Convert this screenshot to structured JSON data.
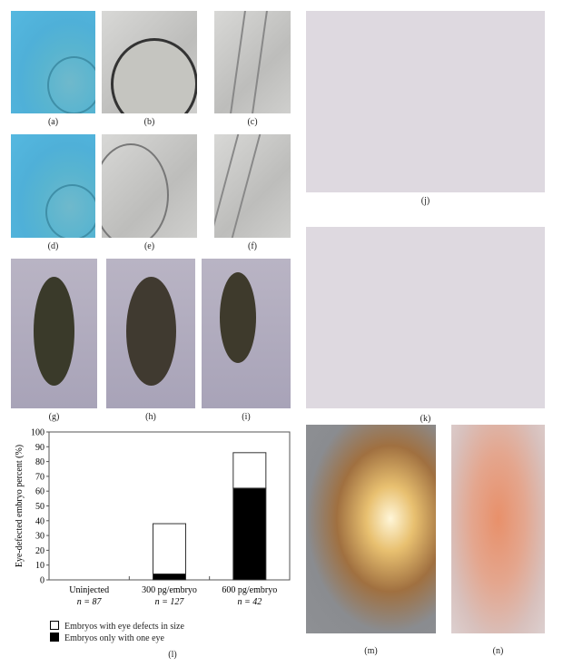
{
  "panels": [
    {
      "id": "a",
      "label": "(a)"
    },
    {
      "id": "b",
      "label": "(b)"
    },
    {
      "id": "c",
      "label": "(c)"
    },
    {
      "id": "d",
      "label": "(d)"
    },
    {
      "id": "e",
      "label": "(e)"
    },
    {
      "id": "f",
      "label": "(f)"
    },
    {
      "id": "g",
      "label": "(g)"
    },
    {
      "id": "h",
      "label": "(h)"
    },
    {
      "id": "i",
      "label": "(i)"
    },
    {
      "id": "j",
      "label": "(j)"
    },
    {
      "id": "k",
      "label": "(k)"
    },
    {
      "id": "m",
      "label": "(m)"
    },
    {
      "id": "n",
      "label": "(n)"
    }
  ],
  "chart_label": "(l)",
  "chart_data": {
    "type": "bar",
    "stacked": true,
    "ylabel": "Eye-defected embryo percent (%)",
    "ylim": [
      0,
      100
    ],
    "yticks": [
      0,
      10,
      20,
      30,
      40,
      50,
      60,
      70,
      80,
      90,
      100
    ],
    "categories": [
      "Uninjected",
      "300 pg/embryo",
      "600 pg/embryo"
    ],
    "category_n": [
      "n = 87",
      "n = 127",
      "n = 42"
    ],
    "series": [
      {
        "name": "Embryos only with one eye",
        "color": "#000000",
        "values": [
          0,
          4,
          62
        ]
      },
      {
        "name": "Embryos with eye defects in size",
        "color": "#ffffff",
        "values": [
          0,
          34,
          24
        ]
      }
    ],
    "grid": false,
    "legend_position": "bottom"
  }
}
